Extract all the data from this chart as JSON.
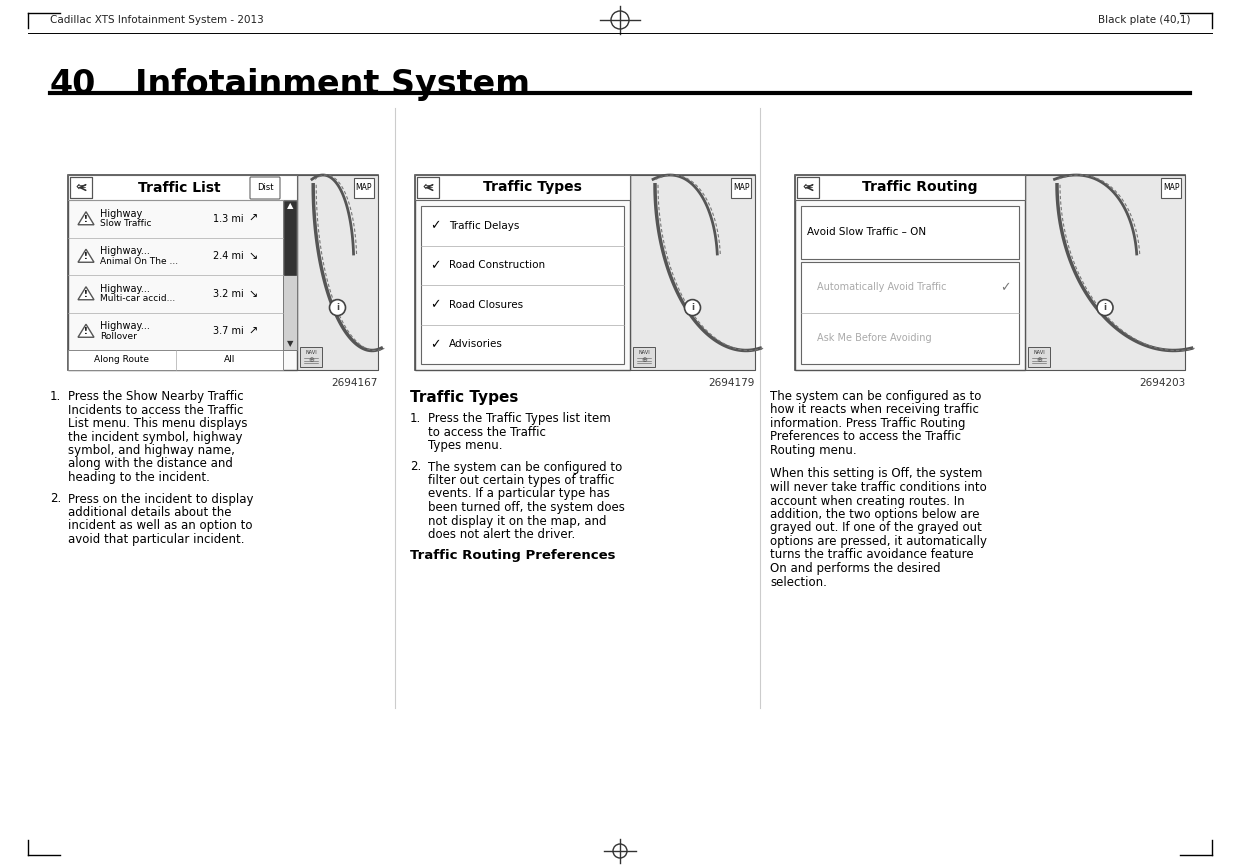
{
  "page_title_num": "40",
  "page_title_text": "Infotainment System",
  "header_left": "Cadillac XTS Infotainment System - 2013",
  "header_right": "Black plate (40,1)",
  "fig_num1": "2694167",
  "fig_num2": "2694179",
  "fig_num3": "2694203",
  "screen1_title": "Traffic List",
  "screen1_rows": [
    {
      "line1": "Highway",
      "line2": "Slow Traffic",
      "dist": "1.3 mi",
      "arrow_up": true
    },
    {
      "line1": "Highway...",
      "line2": "Animal On The ...",
      "dist": "2.4 mi",
      "arrow_up": false
    },
    {
      "line1": "Highway...",
      "line2": "Multi-car accid...",
      "dist": "3.2 mi",
      "arrow_up": false
    },
    {
      "line1": "Highway...",
      "line2": "Rollover",
      "dist": "3.7 mi",
      "arrow_up": true
    }
  ],
  "screen1_bottom_left": "Along Route",
  "screen1_bottom_right": "All",
  "screen2_title": "Traffic Types",
  "screen2_rows": [
    "Traffic Delays",
    "Road Construction",
    "Road Closures",
    "Advisories"
  ],
  "screen3_title": "Traffic Routing",
  "screen3_rows": [
    {
      "text": "Avoid Slow Traffic – ON",
      "indent": false,
      "check": false,
      "gray": false
    },
    {
      "text": "Automatically Avoid Traffic",
      "indent": true,
      "check": true,
      "gray": true
    },
    {
      "text": "Ask Me Before Avoiding",
      "indent": true,
      "check": false,
      "gray": true
    }
  ],
  "col1_paras": [
    [
      "1.",
      "Press the Show Nearby Traffic",
      "Incidents to access the Traffic",
      "List menu. This menu displays",
      "the incident symbol, highway",
      "symbol, and highway name,",
      "along with the distance and",
      "heading to the incident."
    ],
    [
      "2.",
      "Press on the incident to display",
      "additional details about the",
      "incident as well as an option to",
      "avoid that particular incident."
    ]
  ],
  "col2_header": "Traffic Types",
  "col2_paras": [
    [
      "1.",
      "Press the Traffic Types list item",
      "to access the Traffic",
      "Types menu."
    ],
    [
      "2.",
      "The system can be configured to",
      "filter out certain types of traffic",
      "events. If a particular type has",
      "been turned off, the system does",
      "not display it on the map, and",
      "does not alert the driver."
    ]
  ],
  "col2_footer": "Traffic Routing Preferences",
  "col3_para1": [
    "The system can be configured as to",
    "how it reacts when receiving traffic",
    "information. Press Traffic Routing",
    "Preferences to access the Traffic",
    "Routing menu."
  ],
  "col3_para2": [
    "When this setting is Off, the system",
    "will never take traffic conditions into",
    "account when creating routes. In",
    "addition, the two options below are",
    "grayed out. If one of the grayed out",
    "options are pressed, it automatically",
    "turns the traffic avoidance feature",
    "On and performs the desired",
    "selection."
  ],
  "bg": "#ffffff",
  "screen_list_bg": "#f9f9f9",
  "screen_map_bg": "#e0e0e0",
  "screen_border": "#444444",
  "row_line": "#aaaaaa",
  "text_dark": "#000000",
  "text_gray": "#aaaaaa",
  "divider_color": "#bbbbbb"
}
